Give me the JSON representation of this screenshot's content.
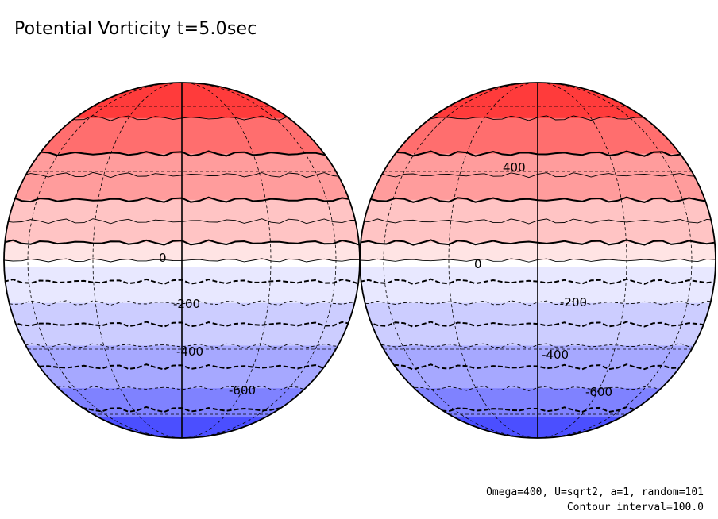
{
  "title": "Potential Vorticity t=5.0sec",
  "footer": {
    "line1": "Omega=400, U=sqrt2, a=1, random=101",
    "line2": "Contour interval=100.0"
  },
  "map": {
    "projection": "two-hemisphere orthographic globes",
    "contour_interval": 100.0,
    "color_scale": [
      "#ff3b3b",
      "#ff6e6e",
      "#ff9c9c",
      "#ffc4c4",
      "#ffe4e4",
      "#ffffff",
      "#e8e8ff",
      "#cccdff",
      "#a6a8ff",
      "#7f82ff",
      "#4b4fff"
    ],
    "left_globe_labels": [
      "0",
      "-200",
      "-400",
      "-600"
    ],
    "right_globe_labels": [
      "400",
      "0",
      "-200",
      "-400",
      "-600"
    ]
  }
}
